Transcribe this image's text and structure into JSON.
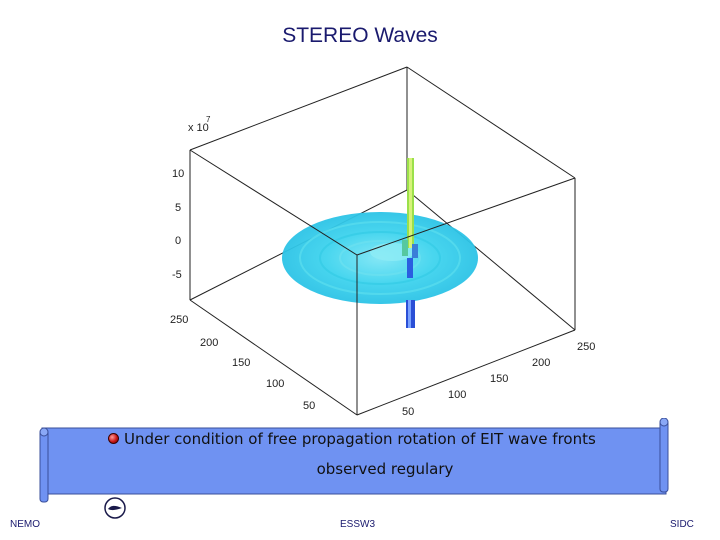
{
  "slide": {
    "title": "STEREO Waves",
    "bullet_text": "Under condition of free propagation rotation of EIT wave fronts",
    "bullet_text_cont": "observed regulary",
    "footer_left": "NEMO",
    "footer_center": "ESSW3",
    "footer_right": "SIDC"
  },
  "figure": {
    "z_multiplier": "x 10",
    "z_exponent": "7",
    "z_ticks": [
      "10",
      "5",
      "0",
      "-5"
    ],
    "y_ticks": [
      "250",
      "200",
      "150",
      "100",
      "50"
    ],
    "x_ticks": [
      "250",
      "200",
      "150",
      "100",
      "50"
    ],
    "surface_color": "#3fd9f0",
    "spike_color": "#9be04a",
    "dip_color": "#2a4fd6"
  },
  "colors": {
    "title": "#1a1a6e",
    "banner_fill": "#6f92f2",
    "banner_edge": "#3a4f9a"
  }
}
